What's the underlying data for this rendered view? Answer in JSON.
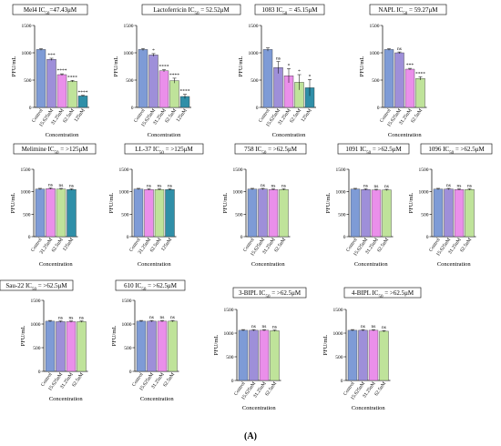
{
  "figure_label": "(A)",
  "colors": {
    "control": "#7e9bd6",
    "c15": "#9e8fd9",
    "c31": "#ea8fea",
    "c62": "#bfe39a",
    "c125": "#2f8fa8",
    "axis": "#000000"
  },
  "chart_data": [
    {
      "type": "bar",
      "title": "Mel4 IC50=47.43μM",
      "xlabel": "Concentration",
      "ylabel": "PFU/mL",
      "ylim": [
        0,
        1500
      ],
      "yticks": [
        0,
        500,
        1000,
        1500
      ],
      "categories": [
        "Control",
        "15.625uM",
        "31.25uM",
        "62.5uM",
        "125uM"
      ],
      "values": [
        1060,
        880,
        600,
        480,
        210
      ],
      "errors": [
        15,
        20,
        15,
        15,
        10
      ],
      "significance": [
        "",
        "***",
        "****",
        "****",
        "****"
      ]
    },
    {
      "type": "bar",
      "title": "Lactoferricin IC50 = 52.52μM",
      "xlabel": "Concentration",
      "ylabel": "PFU/mL",
      "ylim": [
        0,
        1500
      ],
      "yticks": [
        0,
        500,
        1000,
        1500
      ],
      "categories": [
        "Control",
        "15.625uM",
        "31.25uM",
        "62.5uM",
        "125uM"
      ],
      "values": [
        1060,
        960,
        670,
        490,
        200
      ],
      "errors": [
        20,
        25,
        20,
        45,
        40
      ],
      "significance": [
        "",
        "*",
        "****",
        "****",
        "****"
      ]
    },
    {
      "type": "bar",
      "title": "1083 IC50 = 45.15μM",
      "xlabel": "Concentration",
      "ylabel": "PFU/mL",
      "ylim": [
        0,
        1500
      ],
      "yticks": [
        0,
        500,
        1000,
        1500
      ],
      "categories": [
        "Control",
        "15.625uM",
        "31.25uM",
        "62.5uM",
        "125uM"
      ],
      "values": [
        1060,
        730,
        580,
        460,
        360
      ],
      "errors": [
        30,
        110,
        130,
        140,
        150
      ],
      "significance": [
        "",
        "ns",
        "*",
        "*",
        "*"
      ]
    },
    {
      "type": "bar",
      "title": "NAPL IC50 = 59.27μM",
      "xlabel": "Concentration",
      "ylabel": "PFU/mL",
      "ylim": [
        0,
        1500
      ],
      "yticks": [
        0,
        500,
        1000,
        1500
      ],
      "categories": [
        "Control",
        "15.625uM",
        "31.25uM",
        "62.5uM"
      ],
      "values": [
        1060,
        1000,
        700,
        530
      ],
      "errors": [
        15,
        15,
        15,
        30
      ],
      "significance": [
        "",
        "ns",
        "***",
        "****"
      ]
    },
    {
      "type": "bar",
      "title": "Melimine IC50 = >125μM",
      "xlabel": "Concentration",
      "ylabel": "PFU/mL",
      "ylim": [
        0,
        1500
      ],
      "yticks": [
        0,
        500,
        1000,
        1500
      ],
      "categories": [
        "Control",
        "31.25uM",
        "62.5uM",
        "125uM"
      ],
      "values": [
        1060,
        1070,
        1060,
        1050
      ],
      "errors": [
        15,
        15,
        15,
        15
      ],
      "significance": [
        "",
        "ns",
        "ns",
        "ns"
      ]
    },
    {
      "type": "bar",
      "title": "LL-37 IC50 = >125μM",
      "xlabel": "Concentration",
      "ylabel": "PFU/mL",
      "ylim": [
        0,
        1500
      ],
      "yticks": [
        0,
        500,
        1000,
        1500
      ],
      "categories": [
        "Control",
        "31.25uM",
        "62.5uM",
        "125uM"
      ],
      "values": [
        1060,
        1050,
        1050,
        1050
      ],
      "errors": [
        15,
        15,
        15,
        15
      ],
      "significance": [
        "",
        "ns",
        "ns",
        "ns"
      ]
    },
    {
      "type": "bar",
      "title": "758 IC50 = >62.5μM",
      "xlabel": "Concentration",
      "ylabel": "PFU/mL",
      "ylim": [
        0,
        1500
      ],
      "yticks": [
        0,
        500,
        1000,
        1500
      ],
      "categories": [
        "Control",
        "15.625uM",
        "31.25uM",
        "62.5uM"
      ],
      "values": [
        1060,
        1060,
        1050,
        1050
      ],
      "errors": [
        15,
        15,
        15,
        15
      ],
      "significance": [
        "",
        "ns",
        "ns",
        "ns"
      ]
    },
    {
      "type": "bar",
      "title": "1091 IC50 = >62.5μM",
      "xlabel": "Concentration",
      "ylabel": "PFU/mL",
      "ylim": [
        0,
        1500
      ],
      "yticks": [
        0,
        500,
        1000,
        1500
      ],
      "categories": [
        "Control",
        "15.625uM",
        "31.25uM",
        "62.5uM"
      ],
      "values": [
        1060,
        1050,
        1040,
        1040
      ],
      "errors": [
        15,
        15,
        15,
        15
      ],
      "significance": [
        "",
        "ns",
        "ns",
        "ns"
      ]
    },
    {
      "type": "bar",
      "title": "1096 IC50 = >62.5μM",
      "xlabel": "Concentration",
      "ylabel": "PFU/mL",
      "ylim": [
        0,
        1500
      ],
      "yticks": [
        0,
        500,
        1000,
        1500
      ],
      "categories": [
        "Control",
        "15.625uM",
        "31.25uM",
        "62.5uM"
      ],
      "values": [
        1060,
        1060,
        1050,
        1050
      ],
      "errors": [
        15,
        15,
        15,
        15
      ],
      "significance": [
        "",
        "ns",
        "ns",
        "ns"
      ]
    },
    {
      "type": "bar",
      "title": "Sau-22 IC50 = >62.5μM",
      "xlabel": "Concentration",
      "ylabel": "PFU/mL",
      "ylim": [
        0,
        1500
      ],
      "yticks": [
        0,
        500,
        1000,
        1500
      ],
      "categories": [
        "Control",
        "15.625uM",
        "31.25uM",
        "62.5uM"
      ],
      "values": [
        1060,
        1050,
        1050,
        1050
      ],
      "errors": [
        15,
        15,
        15,
        15
      ],
      "significance": [
        "",
        "ns",
        "ns",
        "ns"
      ]
    },
    {
      "type": "bar",
      "title": "610 IC50 = >62.5μM",
      "xlabel": "Concentration",
      "ylabel": "PFU/mL",
      "ylim": [
        0,
        1500
      ],
      "yticks": [
        0,
        500,
        1000,
        1500
      ],
      "categories": [
        "Control",
        "15.625uM",
        "31.25uM",
        "62.5uM"
      ],
      "values": [
        1060,
        1060,
        1060,
        1060
      ],
      "errors": [
        15,
        15,
        15,
        15
      ],
      "significance": [
        "",
        "ns",
        "ns",
        "ns"
      ]
    },
    {
      "type": "bar",
      "title": "3-BIPL IC50 = >62.5μM",
      "xlabel": "Concentration",
      "ylabel": "PFU/mL",
      "ylim": [
        0,
        1500
      ],
      "yticks": [
        0,
        500,
        1000,
        1500
      ],
      "categories": [
        "Control",
        "15.625uM",
        "31.25uM",
        "62.5uM"
      ],
      "values": [
        1060,
        1060,
        1060,
        1050
      ],
      "errors": [
        15,
        15,
        15,
        15
      ],
      "significance": [
        "",
        "ns",
        "ns",
        "ns"
      ]
    },
    {
      "type": "bar",
      "title": "4-BIPL IC50 = >62.5μM",
      "xlabel": "Concentration",
      "ylabel": "PFU/mL",
      "ylim": [
        0,
        1500
      ],
      "yticks": [
        0,
        500,
        1000,
        1500
      ],
      "categories": [
        "Control",
        "15.625uM",
        "31.25uM",
        "62.5uM"
      ],
      "values": [
        1060,
        1060,
        1060,
        1040
      ],
      "errors": [
        15,
        15,
        15,
        15
      ],
      "significance": [
        "",
        "ns",
        "ns",
        "ns"
      ]
    }
  ]
}
